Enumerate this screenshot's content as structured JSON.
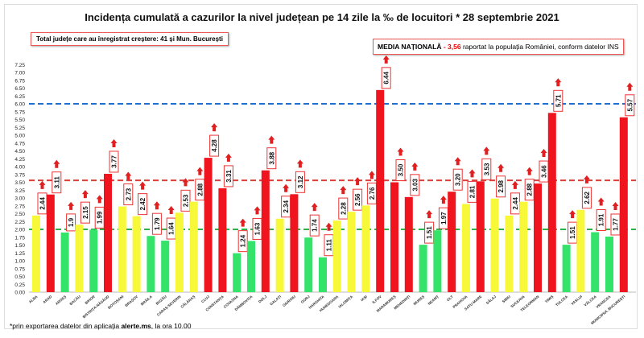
{
  "chart_data": {
    "type": "bar",
    "title": "Incidența cumulată a cazurilor la nivel județean pe 14 zile la ‰ de locuitori * 28 septembrie 2021",
    "categories": [
      "ALBA",
      "ARAD",
      "ARGEȘ",
      "BACĂU",
      "BIHOR",
      "BISTRIȚA-NĂSĂUD",
      "BOTOȘANI",
      "BRAȘOV",
      "BRĂILA",
      "BUZĂU",
      "CARAȘ-SEVERIN",
      "CĂLĂRAȘ",
      "CLUJ",
      "CONSTANȚA",
      "COVASNA",
      "DÂMBOVIȚA",
      "DOLJ",
      "GALAȚI",
      "GIURGIU",
      "GORJ",
      "HARGHITA",
      "HUNEDOARA",
      "IALOMIȚA",
      "IAȘI",
      "ILFOV",
      "MARAMUREȘ",
      "MEHEDINȚI",
      "MUREȘ",
      "NEAMȚ",
      "OLT",
      "PRAHOVA",
      "SATU MARE",
      "SĂLAJ",
      "SIBIU",
      "SUCEAVA",
      "TELEORMAN",
      "TIMIȘ",
      "TULCEA",
      "VASLUI",
      "VÂLCEA",
      "VRANCEA",
      "MUNICIPIUL BUCUREȘTI"
    ],
    "values": [
      2.44,
      3.11,
      1.9,
      2.15,
      1.99,
      3.77,
      2.73,
      2.42,
      1.79,
      1.64,
      2.53,
      2.88,
      4.28,
      3.31,
      1.24,
      1.63,
      3.88,
      2.34,
      3.12,
      1.74,
      1.11,
      2.28,
      2.56,
      2.76,
      6.44,
      3.5,
      3.03,
      1.51,
      1.97,
      3.2,
      2.81,
      3.53,
      2.98,
      2.44,
      2.88,
      3.46,
      5.71,
      1.51,
      2.62,
      1.91,
      1.77,
      5.57
    ],
    "value_labels": [
      "2.44",
      "3.11",
      "1.9",
      "2.15",
      "1.99",
      "3.77",
      "2.73",
      "2.42",
      "1.79",
      "1.64",
      "2.53",
      "2.88",
      "4.28",
      "3.31",
      "1.24",
      "1.63",
      "3.88",
      "2.34",
      "3.12",
      "1.74",
      "1.11",
      "2.28",
      "2.56",
      "2.76",
      "6.44",
      "3.50",
      "3.03",
      "1.51",
      "1.97",
      "3.20",
      "2.81",
      "3.53",
      "2.98",
      "2.44",
      "2.88",
      "3.46",
      "5.71",
      "1.51",
      "2.62",
      "1.91",
      "1.77",
      "5.57"
    ],
    "ylim": [
      0,
      7.25
    ],
    "ytick_step": 0.25,
    "reference_lines": [
      {
        "value": 6.0,
        "color": "#1f6fd1"
      },
      {
        "value": 3.56,
        "color": "#d9403a"
      },
      {
        "value": 2.0,
        "color": "#2db34a"
      }
    ],
    "colors": {
      "low": "#33e36a",
      "mid": "#f8f83a",
      "high": "#f0141e"
    },
    "grid": false
  },
  "info": {
    "increase_text": "Total județe care au înregistrat creștere:  41 și Mun. București",
    "national_label": "MEDIA NAȚIONALĂ",
    "national_dash": " - ",
    "national_value": "3,56",
    "national_rest": " raportat la populația României, conform datelor INS"
  },
  "footnote": {
    "prefix": "*prin exportarea datelor din aplicația ",
    "bold": "alerte.ms",
    "suffix": ", la ora 10.00"
  }
}
